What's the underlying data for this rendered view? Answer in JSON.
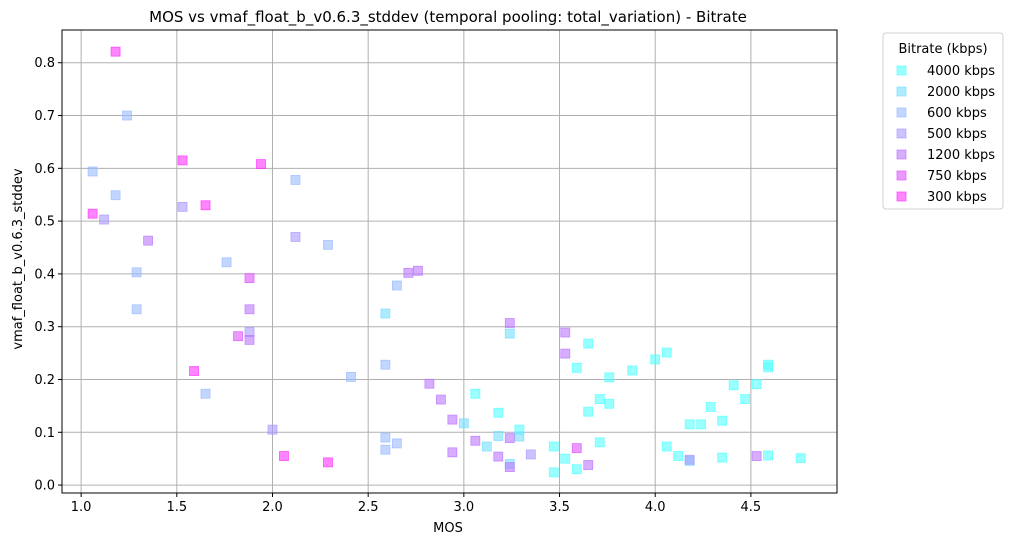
{
  "chart_data": {
    "type": "scatter",
    "title": "MOS vs vmaf_float_b_v0.6.3_stddev (temporal pooling: total_variation) - Bitrate",
    "xlabel": "MOS",
    "ylabel": "vmaf_float_b_v0.6.3_stddev",
    "xlim": [
      0.9,
      4.95
    ],
    "ylim": [
      -0.015,
      0.862
    ],
    "xticks": [
      1.0,
      1.5,
      2.0,
      2.5,
      3.0,
      3.5,
      4.0,
      4.5
    ],
    "xtick_labels": [
      "1.0",
      "1.5",
      "2.0",
      "2.5",
      "3.0",
      "3.5",
      "4.0",
      "4.5"
    ],
    "yticks": [
      0.0,
      0.1,
      0.2,
      0.3,
      0.4,
      0.5,
      0.6,
      0.7,
      0.8
    ],
    "ytick_labels": [
      "0.0",
      "0.1",
      "0.2",
      "0.3",
      "0.4",
      "0.5",
      "0.6",
      "0.7",
      "0.8"
    ],
    "grid": true,
    "marker": "square",
    "legend_title": "Bitrate (kbps)",
    "legend_position": "outside-top-right",
    "series": [
      {
        "name": "4000 kbps",
        "color": "#55ffff",
        "points": [
          [
            3.06,
            0.173
          ],
          [
            3.18,
            0.137
          ],
          [
            3.29,
            0.105
          ],
          [
            3.47,
            0.073
          ],
          [
            3.59,
            0.222
          ],
          [
            3.65,
            0.268
          ],
          [
            3.65,
            0.139
          ],
          [
            3.71,
            0.163
          ],
          [
            3.71,
            0.081
          ],
          [
            3.76,
            0.204
          ],
          [
            3.76,
            0.154
          ],
          [
            3.88,
            0.217
          ],
          [
            4.0,
            0.238
          ],
          [
            4.06,
            0.251
          ],
          [
            4.06,
            0.073
          ],
          [
            4.12,
            0.055
          ],
          [
            4.18,
            0.115
          ],
          [
            4.24,
            0.115
          ],
          [
            4.29,
            0.148
          ],
          [
            4.35,
            0.122
          ],
          [
            4.35,
            0.052
          ],
          [
            4.41,
            0.189
          ],
          [
            4.47,
            0.163
          ],
          [
            4.53,
            0.191
          ],
          [
            4.59,
            0.228
          ],
          [
            4.59,
            0.223
          ],
          [
            4.59,
            0.056
          ],
          [
            4.76,
            0.051
          ],
          [
            3.47,
            0.024
          ],
          [
            3.59,
            0.03
          ],
          [
            3.53,
            0.05
          ]
        ]
      },
      {
        "name": "2000 kbps",
        "color": "#77ddff",
        "points": [
          [
            2.59,
            0.325
          ],
          [
            3.0,
            0.117
          ],
          [
            3.12,
            0.073
          ],
          [
            3.24,
            0.287
          ],
          [
            3.29,
            0.092
          ],
          [
            3.18,
            0.093
          ],
          [
            3.24,
            0.04
          ],
          [
            4.18,
            0.046
          ]
        ]
      },
      {
        "name": "600 kbps",
        "color": "#99bbff",
        "points": [
          [
            1.06,
            0.594
          ],
          [
            1.18,
            0.549
          ],
          [
            1.24,
            0.7
          ],
          [
            1.29,
            0.403
          ],
          [
            1.29,
            0.333
          ],
          [
            1.65,
            0.173
          ],
          [
            1.76,
            0.422
          ],
          [
            2.12,
            0.578
          ],
          [
            2.29,
            0.455
          ],
          [
            2.41,
            0.205
          ],
          [
            2.59,
            0.228
          ],
          [
            2.59,
            0.09
          ],
          [
            2.59,
            0.067
          ],
          [
            2.65,
            0.079
          ],
          [
            2.65,
            0.378
          ]
        ]
      },
      {
        "name": "500 kbps",
        "color": "#aa99ff",
        "points": [
          [
            1.12,
            0.503
          ],
          [
            1.53,
            0.527
          ],
          [
            1.88,
            0.29
          ],
          [
            2.0,
            0.105
          ],
          [
            2.12,
            0.47
          ],
          [
            3.35,
            0.058
          ],
          [
            4.18,
            0.048
          ]
        ]
      },
      {
        "name": "1200 kbps",
        "color": "#bb77ff",
        "points": [
          [
            1.35,
            0.463
          ],
          [
            1.88,
            0.333
          ],
          [
            1.88,
            0.275
          ],
          [
            2.71,
            0.402
          ],
          [
            2.76,
            0.406
          ],
          [
            2.82,
            0.192
          ],
          [
            2.88,
            0.162
          ],
          [
            2.94,
            0.124
          ],
          [
            2.94,
            0.062
          ],
          [
            3.06,
            0.084
          ],
          [
            3.18,
            0.054
          ],
          [
            3.24,
            0.307
          ],
          [
            3.24,
            0.089
          ],
          [
            3.24,
            0.034
          ],
          [
            3.53,
            0.289
          ],
          [
            3.53,
            0.249
          ],
          [
            3.65,
            0.038
          ],
          [
            4.53,
            0.055
          ]
        ]
      },
      {
        "name": "750 kbps",
        "color": "#dd55ff",
        "points": [
          [
            1.88,
            0.392
          ],
          [
            1.82,
            0.282
          ],
          [
            3.59,
            0.07
          ]
        ]
      },
      {
        "name": "300 kbps",
        "color": "#ff33ff",
        "points": [
          [
            1.06,
            0.514
          ],
          [
            1.18,
            0.821
          ],
          [
            1.53,
            0.615
          ],
          [
            1.59,
            0.216
          ],
          [
            1.65,
            0.53
          ],
          [
            1.94,
            0.608
          ],
          [
            2.06,
            0.055
          ],
          [
            2.29,
            0.043
          ]
        ]
      }
    ]
  }
}
